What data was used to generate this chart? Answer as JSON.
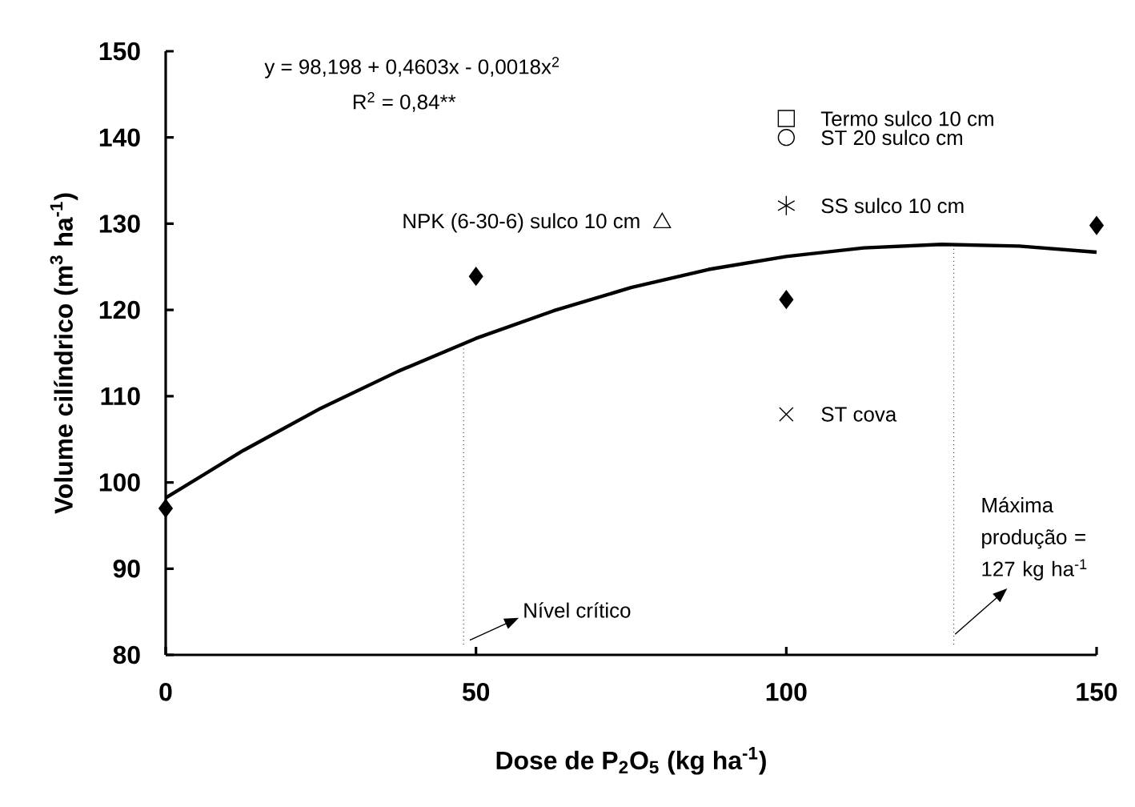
{
  "chart_data": {
    "type": "scatter",
    "xlabel": "Dose de P$_{2}$O$_{5}$ (kg ha$^{-1}$)",
    "ylabel": "Volume cilíndrico (m$^{3}$ ha$^{-1}$)",
    "annotations": [
      "y =  98,198 + 0,4603x  - 0,0018x$^{2}$",
      "R$^{2}$ = 0,84**"
    ],
    "xlim": [
      0,
      150
    ],
    "ylim": [
      80,
      150
    ],
    "xticks": [
      0,
      50,
      100,
      150
    ],
    "yticks": [
      80,
      90,
      100,
      110,
      120,
      130,
      140,
      150
    ],
    "legend": "top right",
    "series": [
      {
        "type": "line",
        "color": "#000000",
        "x": [
          0,
          12.5,
          25,
          37.5,
          50,
          62.5,
          75,
          87.5,
          100,
          112.5,
          125,
          137.5,
          150
        ],
        "values": [
          98.2,
          103.7,
          108.6,
          112.9,
          116.7,
          119.9,
          122.6,
          124.7,
          126.2,
          127.2,
          127.6,
          127.4,
          126.7
        ]
      },
      {
        "type": "scatter",
        "marker": "diamond",
        "color": "#000000",
        "x": [
          0,
          50,
          100,
          150
        ],
        "values": [
          97.0,
          123.9,
          121.2,
          129.8
        ]
      },
      {
        "type": "scatter",
        "marker": "triangle",
        "name": "NPK (6-30-6)  sulco 10 cm",
        "color": "#000000",
        "x": [
          80
        ],
        "values": [
          130.1
        ]
      },
      {
        "type": "scatter",
        "marker": "square",
        "name": "Termo sulco 10 cm",
        "color": "#000000",
        "x": [
          100
        ],
        "values": [
          142.2
        ]
      },
      {
        "type": "scatter",
        "marker": "circle",
        "name": "ST 20 sulco cm",
        "color": "#000000",
        "x": [
          100
        ],
        "values": [
          140.0
        ]
      },
      {
        "type": "scatter",
        "name": "SS  sulco 10 cm",
        "color": "#000000",
        "x": [
          100
        ],
        "values": [
          132.1
        ]
      },
      {
        "type": "scatter",
        "marker": "cross",
        "name": "ST cova",
        "color": "#000000",
        "x": [
          100
        ],
        "values": [
          107.9
        ]
      }
    ],
    "ref_lines": [
      {
        "axis": "x",
        "value": 48,
        "label": "Nível crítico",
        "color": "#000000",
        "line_style": "dotted"
      },
      {
        "axis": "x",
        "value": 127,
        "label": "Máxima produção = 127 kg ha$^{-1}$",
        "color": "#000000",
        "line_style": "dotted"
      }
    ]
  }
}
